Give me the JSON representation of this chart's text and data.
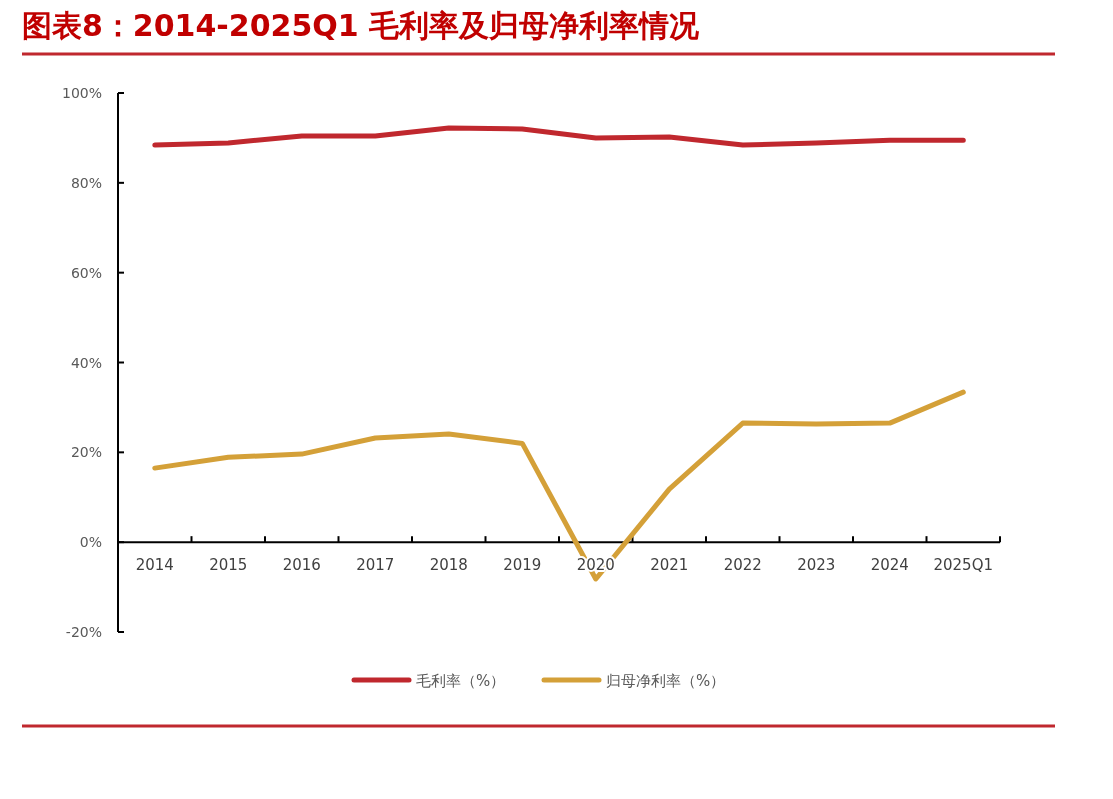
{
  "chart_data": {
    "type": "line",
    "title": "图表8：2014-2025Q1 毛利率及归母净利率情况",
    "categories": [
      "2014",
      "2015",
      "2016",
      "2017",
      "2018",
      "2019",
      "2020",
      "2021",
      "2022",
      "2023",
      "2024",
      "2025Q1"
    ],
    "series": [
      {
        "name": "毛利率（%）",
        "color": "#c0282e",
        "values": [
          88.4,
          88.9,
          90.4,
          90.4,
          92.2,
          92.0,
          90.0,
          90.2,
          88.4,
          88.9,
          89.5,
          89.5
        ]
      },
      {
        "name": "归母净利率（%）",
        "color": "#d4a038",
        "values": [
          16.5,
          18.9,
          19.6,
          23.2,
          24.1,
          22.0,
          -8.2,
          11.8,
          26.5,
          26.3,
          26.5,
          33.4
        ]
      }
    ],
    "ylim": [
      -20,
      100
    ],
    "yticks": [
      {
        "value": -20,
        "label": "-20%"
      },
      {
        "value": 0,
        "label": "0%"
      },
      {
        "value": 20,
        "label": "20%"
      },
      {
        "value": 40,
        "label": "40%"
      },
      {
        "value": 60,
        "label": "60%"
      },
      {
        "value": 80,
        "label": "80%"
      },
      {
        "value": 100,
        "label": "100%"
      }
    ],
    "legend": "bottom",
    "marker": "none",
    "line_style": "solid"
  }
}
